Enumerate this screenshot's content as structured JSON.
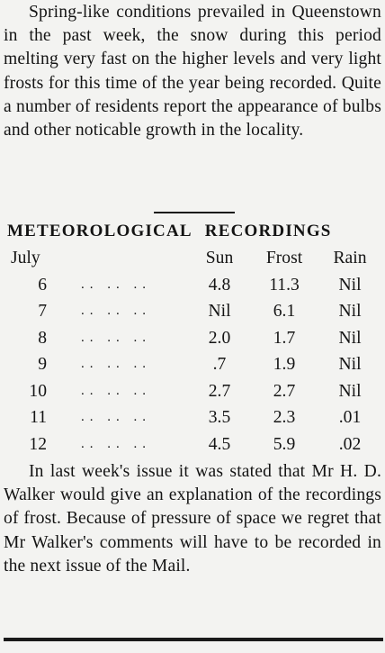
{
  "article": {
    "paragraph_1": "Spring-like conditions prevailed in Queenstown in the past week, the snow during this period melting very fast on the higher levels and very light frosts for this time of the year being recorded. Quite a number of residents report the appearance of bulbs and other noticable growth in the locality.",
    "heading_part_1": "METEOROLOGICAL",
    "heading_part_2": "RECORDINGS",
    "paragraph_2": "In last week's issue it was stated that Mr H. D. Walker would give an explanation of the recordings of frost. Because of pressure of space we regret that Mr Walker's comments will have to be recorded in the next issue of the Mail."
  },
  "table": {
    "columns": {
      "month": "July",
      "sun": "Sun",
      "frost": "Frost",
      "rain": "Rain"
    },
    "leader": ".. .. ..",
    "rows": [
      {
        "day": "6",
        "sun": "4.8",
        "frost": "11.3",
        "rain": "Nil"
      },
      {
        "day": "7",
        "sun": "Nil",
        "frost": "6.1",
        "rain": "Nil"
      },
      {
        "day": "8",
        "sun": "2.0",
        "frost": "1.7",
        "rain": "Nil"
      },
      {
        "day": "9",
        "sun": ".7",
        "frost": "1.9",
        "rain": "Nil"
      },
      {
        "day": "10",
        "sun": "2.7",
        "frost": "2.7",
        "rain": "Nil"
      },
      {
        "day": "11",
        "sun": "3.5",
        "frost": "2.3",
        "rain": ".01"
      },
      {
        "day": "12",
        "sun": "4.5",
        "frost": "5.9",
        "rain": ".02"
      }
    ]
  }
}
